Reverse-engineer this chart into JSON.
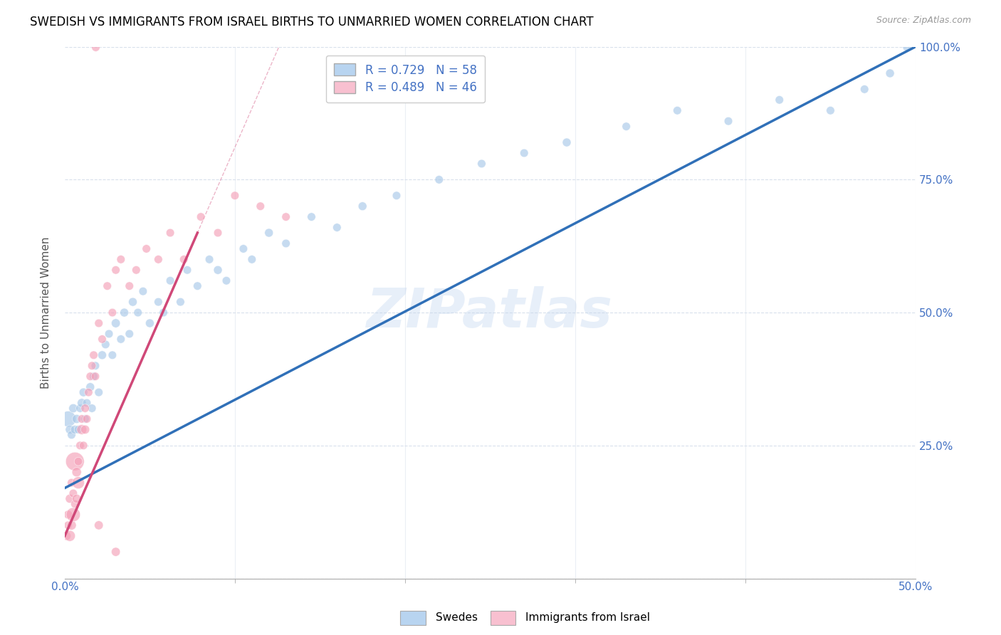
{
  "title": "SWEDISH VS IMMIGRANTS FROM ISRAEL BIRTHS TO UNMARRIED WOMEN CORRELATION CHART",
  "source": "Source: ZipAtlas.com",
  "ylabel": "Births to Unmarried Women",
  "watermark": "ZIPatlas",
  "swedes_R": "0.729",
  "swedes_N": "58",
  "israel_R": "0.489",
  "israel_N": "46",
  "legend_swedes": "Swedes",
  "legend_israel": "Immigrants from Israel",
  "blue_color": "#a8c8e8",
  "pink_color": "#f4a0b8",
  "blue_line_color": "#3070b8",
  "pink_line_color": "#d04878",
  "blue_legend_color": "#b8d4f0",
  "pink_legend_color": "#f8c0d0",
  "swedes_x": [
    0.002,
    0.003,
    0.004,
    0.005,
    0.006,
    0.007,
    0.008,
    0.009,
    0.01,
    0.011,
    0.012,
    0.013,
    0.015,
    0.016,
    0.017,
    0.018,
    0.02,
    0.022,
    0.024,
    0.026,
    0.028,
    0.03,
    0.033,
    0.035,
    0.038,
    0.04,
    0.043,
    0.046,
    0.05,
    0.055,
    0.058,
    0.062,
    0.068,
    0.072,
    0.078,
    0.085,
    0.09,
    0.095,
    0.105,
    0.11,
    0.12,
    0.13,
    0.145,
    0.16,
    0.175,
    0.195,
    0.22,
    0.245,
    0.27,
    0.295,
    0.33,
    0.36,
    0.39,
    0.42,
    0.45,
    0.47,
    0.485,
    0.495
  ],
  "swedes_y": [
    0.3,
    0.28,
    0.27,
    0.32,
    0.28,
    0.3,
    0.28,
    0.32,
    0.33,
    0.35,
    0.3,
    0.33,
    0.36,
    0.32,
    0.38,
    0.4,
    0.35,
    0.42,
    0.44,
    0.46,
    0.42,
    0.48,
    0.45,
    0.5,
    0.46,
    0.52,
    0.5,
    0.54,
    0.48,
    0.52,
    0.5,
    0.56,
    0.52,
    0.58,
    0.55,
    0.6,
    0.58,
    0.56,
    0.62,
    0.6,
    0.65,
    0.63,
    0.68,
    0.66,
    0.7,
    0.72,
    0.75,
    0.78,
    0.8,
    0.82,
    0.85,
    0.88,
    0.86,
    0.9,
    0.88,
    0.92,
    0.95,
    1.0
  ],
  "swedes_size": [
    250,
    80,
    70,
    80,
    75,
    80,
    70,
    70,
    80,
    75,
    70,
    70,
    75,
    70,
    70,
    70,
    70,
    75,
    70,
    70,
    70,
    80,
    70,
    75,
    70,
    75,
    70,
    70,
    75,
    70,
    70,
    70,
    70,
    70,
    70,
    70,
    75,
    70,
    70,
    70,
    75,
    70,
    70,
    70,
    75,
    70,
    70,
    70,
    70,
    75,
    70,
    70,
    70,
    70,
    70,
    70,
    75,
    80
  ],
  "israel_x": [
    0.001,
    0.002,
    0.002,
    0.003,
    0.003,
    0.004,
    0.004,
    0.005,
    0.005,
    0.006,
    0.006,
    0.007,
    0.007,
    0.008,
    0.008,
    0.009,
    0.01,
    0.01,
    0.011,
    0.012,
    0.012,
    0.013,
    0.014,
    0.015,
    0.016,
    0.017,
    0.018,
    0.02,
    0.022,
    0.025,
    0.028,
    0.03,
    0.033,
    0.038,
    0.042,
    0.048,
    0.055,
    0.062,
    0.07,
    0.08,
    0.09,
    0.1,
    0.115,
    0.13,
    0.02,
    0.03
  ],
  "israel_y": [
    0.08,
    0.1,
    0.12,
    0.08,
    0.15,
    0.1,
    0.18,
    0.12,
    0.16,
    0.14,
    0.22,
    0.15,
    0.2,
    0.18,
    0.22,
    0.25,
    0.28,
    0.3,
    0.25,
    0.28,
    0.32,
    0.3,
    0.35,
    0.38,
    0.4,
    0.42,
    0.38,
    0.48,
    0.45,
    0.55,
    0.5,
    0.58,
    0.6,
    0.55,
    0.58,
    0.62,
    0.6,
    0.65,
    0.6,
    0.68,
    0.65,
    0.72,
    0.7,
    0.68,
    0.1,
    0.05
  ],
  "israel_size": [
    80,
    70,
    75,
    120,
    80,
    90,
    70,
    200,
    70,
    70,
    350,
    80,
    90,
    150,
    70,
    70,
    100,
    70,
    70,
    80,
    70,
    70,
    70,
    70,
    70,
    70,
    70,
    70,
    70,
    70,
    70,
    70,
    70,
    70,
    70,
    70,
    70,
    70,
    70,
    70,
    70,
    70,
    70,
    70,
    80,
    80
  ],
  "isr_outlier_x": [
    0.018
  ],
  "isr_outlier_y": [
    1.0
  ],
  "isr_outlier_size": [
    70
  ],
  "xlim": [
    0,
    0.5
  ],
  "ylim": [
    0,
    1.0
  ],
  "x_ticks": [
    0.0,
    0.5
  ],
  "x_tick_labels": [
    "0.0%",
    "50.0%"
  ],
  "y_ticks": [
    0.0,
    0.25,
    0.5,
    0.75,
    1.0
  ],
  "y_tick_labels": [
    "",
    "25.0%",
    "50.0%",
    "75.0%",
    "100.0%"
  ],
  "grid_color": "#d8e0ec",
  "title_fontsize": 12,
  "source_fontsize": 9,
  "label_fontsize": 11,
  "tick_fontsize": 11,
  "legend_fontsize": 12,
  "watermark_fontsize": 55,
  "watermark_color": "#c5d8f0",
  "watermark_alpha": 0.4,
  "axis_color": "#4472c4",
  "ylabel_color": "#555555"
}
